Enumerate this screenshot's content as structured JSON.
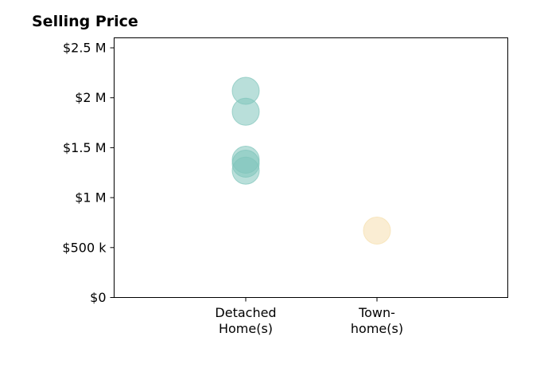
{
  "chart_data": {
    "type": "scatter",
    "title": "Selling Price",
    "xlabel": "",
    "ylabel": "",
    "categories": [
      [
        "Detached",
        "Home(s)"
      ],
      [
        "Town-",
        "home(s)"
      ]
    ],
    "ylim": [
      0,
      2600000
    ],
    "yticks": [
      {
        "value": 0,
        "label": "$0"
      },
      {
        "value": 500000,
        "label": "$500 k"
      },
      {
        "value": 1000000,
        "label": "$1 M"
      },
      {
        "value": 1500000,
        "label": "$1.5 M"
      },
      {
        "value": 2000000,
        "label": "$2 M"
      },
      {
        "value": 2500000,
        "label": "$2.5 M"
      }
    ],
    "grid": false,
    "legend": "none",
    "points": [
      {
        "category": 0,
        "y": 2070000,
        "color": "#7fc4bb"
      },
      {
        "category": 0,
        "y": 1860000,
        "color": "#7fc4bb"
      },
      {
        "category": 0,
        "y": 1380000,
        "color": "#7fc4bb"
      },
      {
        "category": 0,
        "y": 1340000,
        "color": "#7fc4bb"
      },
      {
        "category": 0,
        "y": 1270000,
        "color": "#7fc4bb"
      },
      {
        "category": 1,
        "y": 670000,
        "color": "#f5dfae"
      }
    ]
  }
}
